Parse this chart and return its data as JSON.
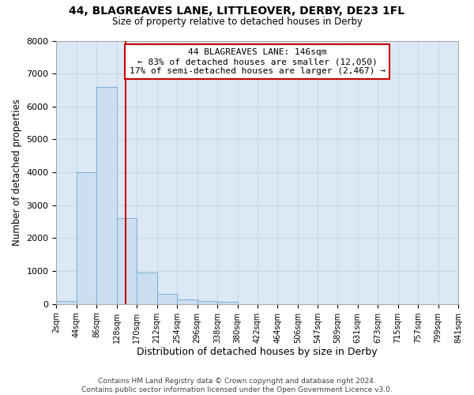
{
  "title": "44, BLAGREAVES LANE, LITTLEOVER, DERBY, DE23 1FL",
  "subtitle": "Size of property relative to detached houses in Derby",
  "xlabel": "Distribution of detached houses by size in Derby",
  "ylabel": "Number of detached properties",
  "footer_line1": "Contains HM Land Registry data © Crown copyright and database right 2024.",
  "footer_line2": "Contains public sector information licensed under the Open Government Licence v3.0.",
  "bin_edges": [
    2,
    44,
    86,
    128,
    170,
    212,
    254,
    296,
    338,
    380,
    422,
    464,
    506,
    547,
    589,
    631,
    673,
    715,
    757,
    799,
    841
  ],
  "bar_heights": [
    100,
    4000,
    6600,
    2600,
    950,
    300,
    130,
    100,
    70,
    0,
    0,
    0,
    0,
    0,
    0,
    0,
    0,
    0,
    0,
    0
  ],
  "bar_color": "#ccdff0",
  "bar_edge_color": "#7bafd4",
  "plot_bg_color": "#dce8f5",
  "fig_bg_color": "#ffffff",
  "grid_color": "#c8d8e8",
  "vline_x": 146,
  "vline_color": "#cc0000",
  "annotation_line1": "44 BLAGREAVES LANE: 146sqm",
  "annotation_line2": "← 83% of detached houses are smaller (12,050)",
  "annotation_line3": "17% of semi-detached houses are larger (2,467) →",
  "ylim": [
    0,
    8000
  ],
  "yticks": [
    0,
    1000,
    2000,
    3000,
    4000,
    5000,
    6000,
    7000,
    8000
  ]
}
